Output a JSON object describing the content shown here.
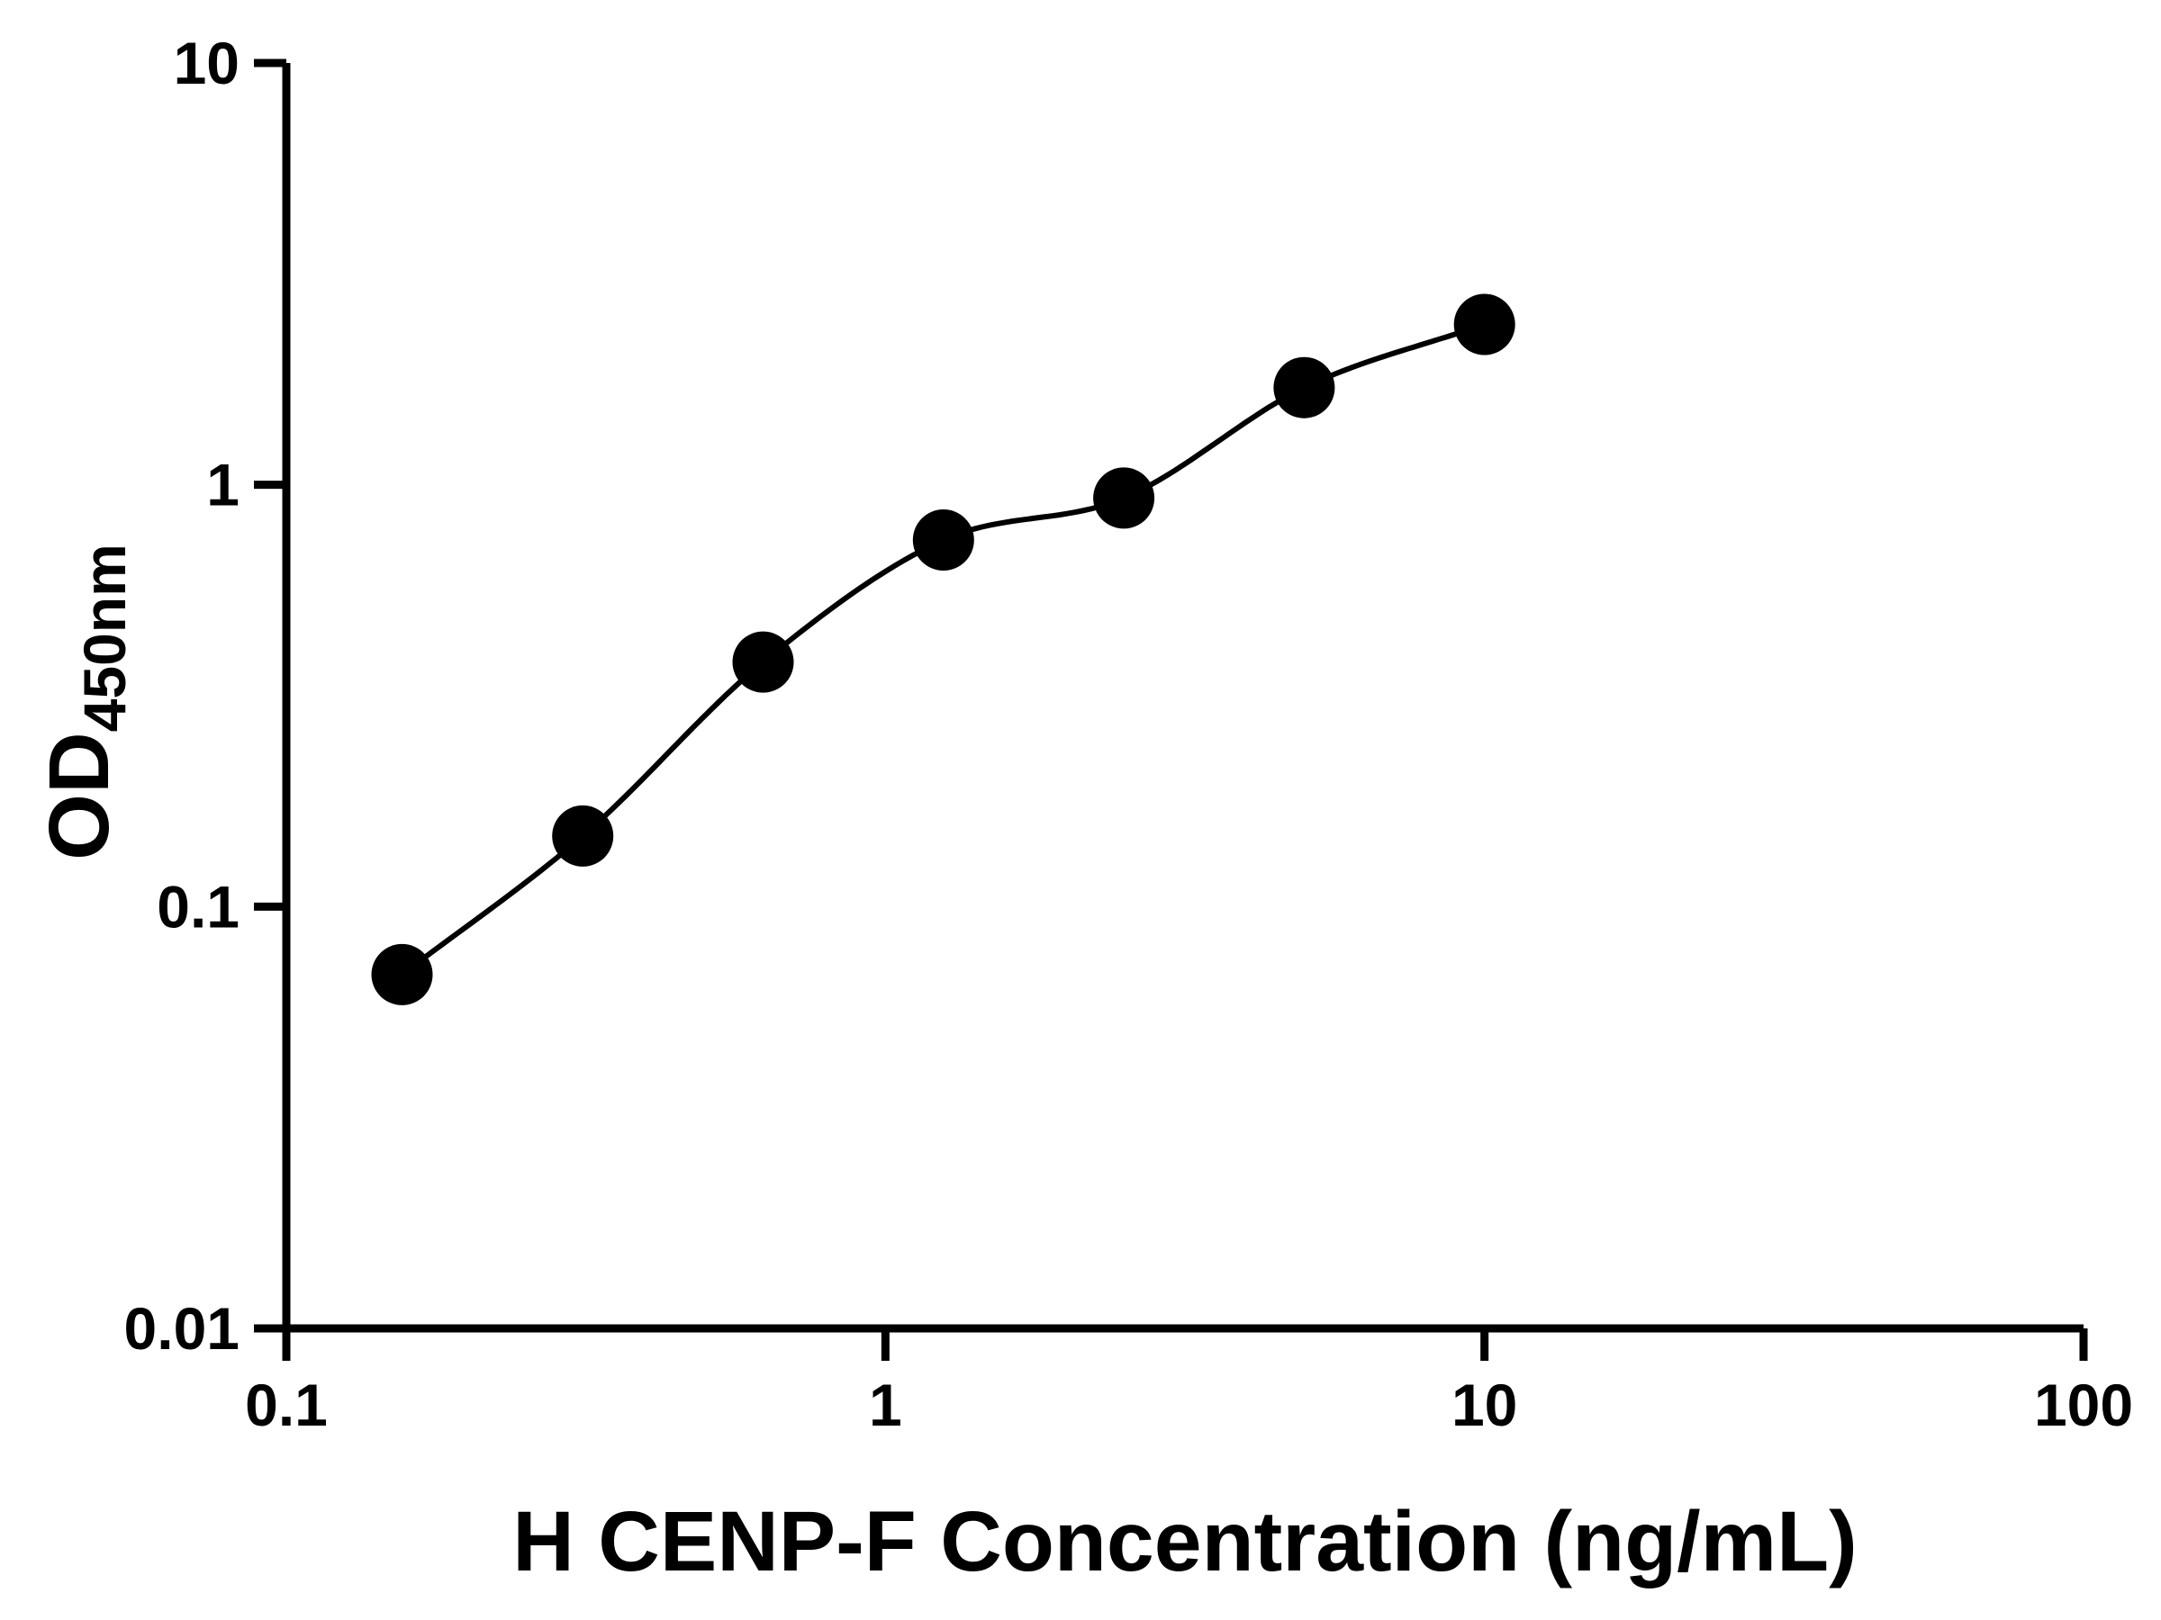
{
  "chart_data": {
    "type": "scatter",
    "subtype": "elisa-standard-curve",
    "title": "",
    "xlabel": "H CENP-F Concentration (ng/mL)",
    "ylabel": "OD450nm",
    "ylabel_main": "OD",
    "ylabel_sub": "450nm",
    "x_scale": "log10",
    "y_scale": "log10",
    "xlim": [
      0.1,
      100
    ],
    "ylim": [
      0.01,
      10
    ],
    "grid": false,
    "legend": false,
    "x": [
      0.156,
      0.3125,
      0.625,
      1.25,
      2.5,
      5,
      10
    ],
    "y": [
      0.069,
      0.147,
      0.38,
      0.74,
      0.93,
      1.7,
      2.4
    ],
    "x_ticks": [
      {
        "value": 0.1,
        "label": "0.1"
      },
      {
        "value": 1,
        "label": "1"
      },
      {
        "value": 10,
        "label": "10"
      },
      {
        "value": 100,
        "label": "100"
      }
    ],
    "y_ticks": [
      {
        "value": 0.01,
        "label": "0.01"
      },
      {
        "value": 0.1,
        "label": "0.1"
      },
      {
        "value": 1,
        "label": "1"
      },
      {
        "value": 10,
        "label": "10"
      }
    ],
    "curve": {
      "style": "smooth-fit",
      "from_x": 0.156,
      "to_x": 10
    },
    "colors": {
      "marker": "#000000",
      "line": "#000000",
      "axis": "#000000",
      "text": "#000000",
      "background": "#ffffff"
    }
  }
}
